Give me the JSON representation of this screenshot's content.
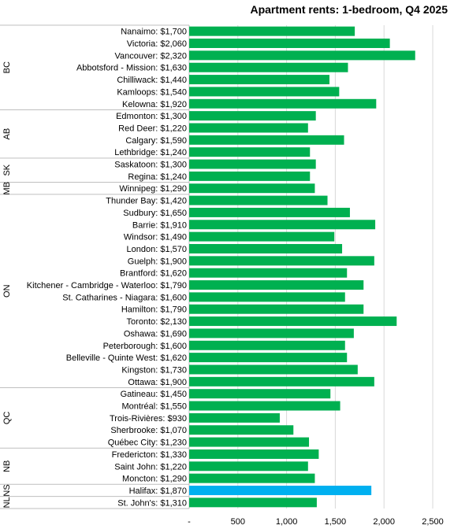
{
  "chart_data": {
    "type": "bar",
    "orientation": "horizontal",
    "title": "Apartment rents: 1-bedroom, Q4 2025",
    "xlabel": "",
    "ylabel": "",
    "xlim": [
      0,
      2500
    ],
    "x_ticks": [
      0,
      500,
      1000,
      1500,
      2000,
      2500
    ],
    "x_tick_labels": [
      "-",
      "500",
      "1,000",
      "1,500",
      "2,000",
      "2,500"
    ],
    "grid": true,
    "legend": "none",
    "colors": {
      "default": "#00b050",
      "highlight": "#00b0f0",
      "grid": "#d9d9d9",
      "axis": "#bfbfbf"
    },
    "groups": [
      {
        "label": "BC",
        "start": 0,
        "end": 6
      },
      {
        "label": "AB",
        "start": 7,
        "end": 10
      },
      {
        "label": "SK",
        "start": 11,
        "end": 12
      },
      {
        "label": "MB",
        "start": 13,
        "end": 13
      },
      {
        "label": "ON",
        "start": 14,
        "end": 29
      },
      {
        "label": "QC",
        "start": 30,
        "end": 34
      },
      {
        "label": "NB",
        "start": 35,
        "end": 37
      },
      {
        "label": "NS",
        "start": 38,
        "end": 38
      },
      {
        "label": "NL",
        "start": 39,
        "end": 39
      }
    ],
    "categories": [
      "Nanaimo: $1,700",
      "Victoria: $2,060",
      "Vancouver: $2,320",
      "Abbotsford - Mission: $1,630",
      "Chilliwack: $1,440",
      "Kamloops: $1,540",
      "Kelowna: $1,920",
      "Edmonton: $1,300",
      "Red Deer: $1,220",
      "Calgary: $1,590",
      "Lethbridge: $1,240",
      "Saskatoon: $1,300",
      "Regina: $1,240",
      "Winnipeg: $1,290",
      "Thunder Bay: $1,420",
      "Sudbury: $1,650",
      "Barrie: $1,910",
      "Windsor: $1,490",
      "London: $1,570",
      "Guelph: $1,900",
      "Brantford: $1,620",
      "Kitchener - Cambridge - Waterloo: $1,790",
      "St. Catharines - Niagara: $1,600",
      "Hamilton: $1,790",
      "Toronto: $2,130",
      "Oshawa: $1,690",
      "Peterborough: $1,600",
      "Belleville - Quinte West: $1,620",
      "Kingston: $1,730",
      "Ottawa: $1,900",
      "Gatineau: $1,450",
      "Montréal: $1,550",
      "Trois-Rivières: $930",
      "Sherbrooke: $1,070",
      "Québec City: $1,230",
      "Fredericton: $1,330",
      "Saint John: $1,220",
      "Moncton: $1,290",
      "Halifax: $1,870",
      "St. John's: $1,310"
    ],
    "values": [
      1700,
      2060,
      2320,
      1630,
      1440,
      1540,
      1920,
      1300,
      1220,
      1590,
      1240,
      1300,
      1240,
      1290,
      1420,
      1650,
      1910,
      1490,
      1570,
      1900,
      1620,
      1790,
      1600,
      1790,
      2130,
      1690,
      1600,
      1620,
      1730,
      1900,
      1450,
      1550,
      930,
      1070,
      1230,
      1330,
      1220,
      1290,
      1870,
      1310
    ],
    "highlight_index": 38
  }
}
